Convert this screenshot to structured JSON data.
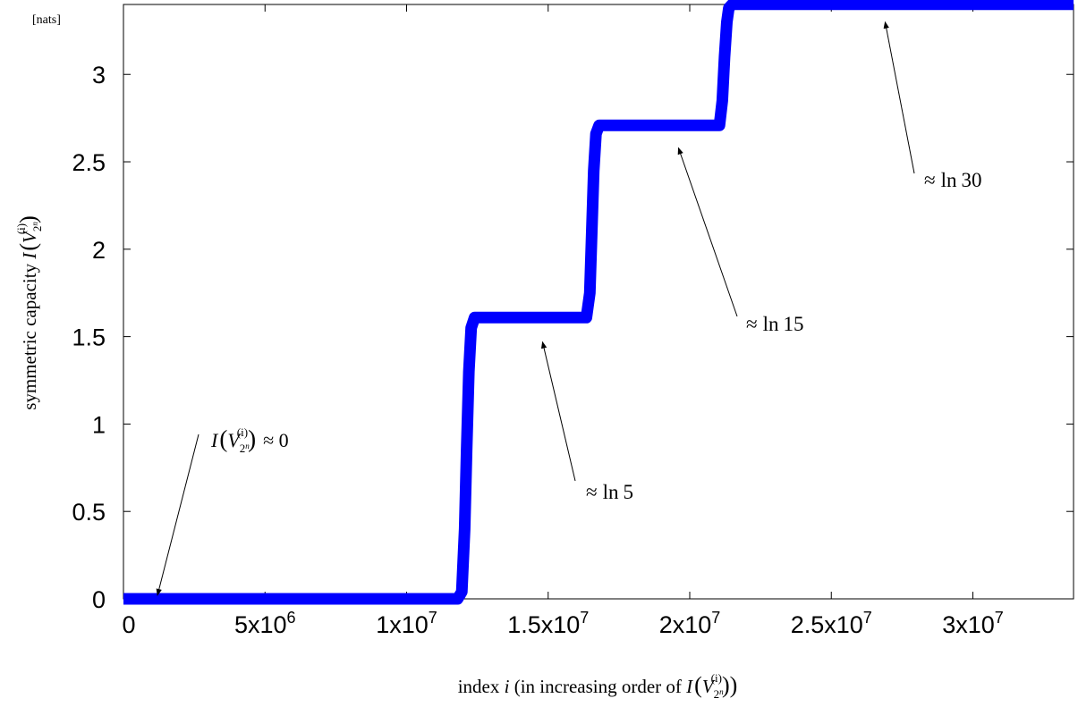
{
  "chart_data": {
    "type": "line",
    "title": "",
    "unit_label": "[nats]",
    "xlabel": {
      "prefix": "index ",
      "var": "i",
      "middle": " (in increasing order of ",
      "func": "I",
      "paren_open": "(",
      "V": "V",
      "sub": "2",
      "subsup": "n",
      "sup": "(i)",
      "paren_close": "))"
    },
    "ylabel": {
      "prefix": "symmetric capacity ",
      "func": "I",
      "paren_open": "(",
      "V": "V",
      "sub": "2",
      "subsup": "n",
      "sup": "(i)",
      "paren_close": ")"
    },
    "xlim": [
      0,
      33554432
    ],
    "ylim": [
      0,
      3.4
    ],
    "xticks": [
      {
        "value": 0,
        "mantissa": "0",
        "exponent": ""
      },
      {
        "value": 5000000,
        "mantissa": "5x10",
        "exponent": "6"
      },
      {
        "value": 10000000,
        "mantissa": "1x10",
        "exponent": "7"
      },
      {
        "value": 15000000,
        "mantissa": "1.5x10",
        "exponent": "7"
      },
      {
        "value": 20000000,
        "mantissa": "2x10",
        "exponent": "7"
      },
      {
        "value": 25000000,
        "mantissa": "2.5x10",
        "exponent": "7"
      },
      {
        "value": 30000000,
        "mantissa": "3x10",
        "exponent": "7"
      }
    ],
    "yticks": [
      {
        "value": 0,
        "label": "0"
      },
      {
        "value": 0.5,
        "label": "0.5"
      },
      {
        "value": 1,
        "label": "1"
      },
      {
        "value": 1.5,
        "label": "1.5"
      },
      {
        "value": 2,
        "label": "2"
      },
      {
        "value": 2.5,
        "label": "2.5"
      },
      {
        "value": 3,
        "label": "3"
      }
    ],
    "series": [
      {
        "color": "#0000ff",
        "x": [
          0,
          11800000,
          11950000,
          12050000,
          12120000,
          12200000,
          12280000,
          12400000,
          16350000,
          16470000,
          16540000,
          16610000,
          16690000,
          16800000,
          21050000,
          21150000,
          21230000,
          21310000,
          21380000,
          21500000,
          33554432
        ],
        "y": [
          0,
          0,
          0.04,
          0.4,
          0.85,
          1.3,
          1.55,
          1.609,
          1.609,
          1.75,
          2.1,
          2.45,
          2.66,
          2.708,
          2.708,
          2.85,
          3.1,
          3.3,
          3.38,
          3.401,
          3.401
        ]
      }
    ],
    "annotations": [
      {
        "label": {
          "func": "I",
          "paren_open": "(",
          "V": "V",
          "sub": "2",
          "subsup": "n",
          "sup": "(i)",
          "paren_close": ")",
          "rest": "≈ 0"
        },
        "arrow_to": {
          "x": 1200000,
          "y": 0.02
        }
      },
      {
        "label": {
          "approx": "≈",
          "ln": "ln",
          "num": "5"
        },
        "arrow_to": {
          "x": 14800000,
          "y": 1.47
        }
      },
      {
        "label": {
          "approx": "≈",
          "ln": "ln",
          "num": "15"
        },
        "arrow_to": {
          "x": 19600000,
          "y": 2.58
        }
      },
      {
        "label": {
          "approx": "≈",
          "ln": "ln",
          "num": "30"
        },
        "arrow_to": {
          "x": 26900000,
          "y": 3.3
        }
      }
    ],
    "grid": false,
    "legend": "none"
  }
}
